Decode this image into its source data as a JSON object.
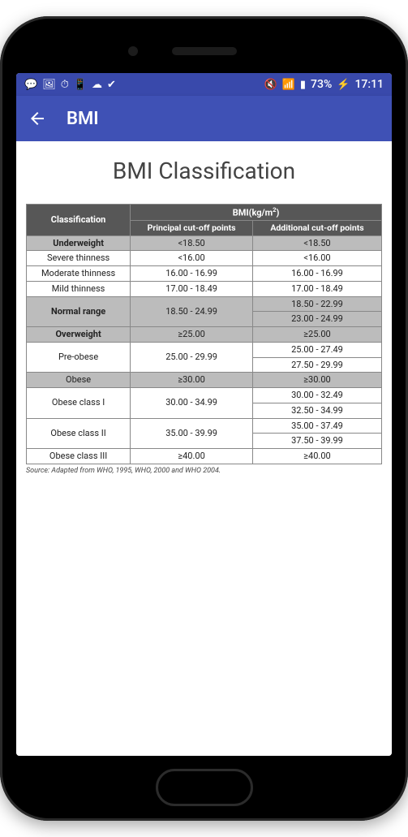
{
  "status_bar": {
    "left_icons": [
      "💬",
      "🖼",
      "⏱",
      "📱",
      "☁",
      "✔"
    ],
    "mute_icon": "🔇",
    "wifi_icon": "📶",
    "signal_icon": "▮",
    "battery_text": "73%",
    "battery_icon": "⚡",
    "time": "17:11"
  },
  "app_bar": {
    "title": "BMI"
  },
  "page": {
    "title": "BMI Classification",
    "source_note": "Source: Adapted from WHO, 1995, WHO, 2000 and WHO 2004."
  },
  "table": {
    "type": "table",
    "header": {
      "col1": "Classification",
      "col2": "BMI(kg/m",
      "col2_sup": "2",
      "col2_close": ")",
      "sub_principal": "Principal cut-off points",
      "sub_additional": "Additional cut-off points"
    },
    "colors": {
      "header_bg": "#575757",
      "header_fg": "#ffffff",
      "category_bg": "#bcbcbc",
      "border": "#888888",
      "row_bg": "#ffffff"
    },
    "rows": [
      {
        "kind": "category",
        "label": "Underweight",
        "principal": "<18.50",
        "additional": [
          "<18.50"
        ],
        "principal_rowspan": 1
      },
      {
        "kind": "sub",
        "indent": 1,
        "label": "Severe thinness",
        "principal": "<16.00",
        "additional": [
          "<16.00"
        ]
      },
      {
        "kind": "sub",
        "indent": 1,
        "label": "Moderate thinness",
        "principal": "16.00 - 16.99",
        "additional": [
          "16.00 - 16.99"
        ]
      },
      {
        "kind": "sub",
        "indent": 1,
        "label": "Mild thinness",
        "principal": "17.00 - 18.49",
        "additional": [
          "17.00 - 18.49"
        ]
      },
      {
        "kind": "category",
        "label": "Normal range",
        "principal": "18.50 - 24.99",
        "additional": [
          "18.50 - 22.99",
          "23.00 - 24.99"
        ],
        "principal_rowspan": 2,
        "shade_additional": true
      },
      {
        "kind": "category",
        "label": "Overweight",
        "principal": "≥25.00",
        "additional": [
          "≥25.00"
        ]
      },
      {
        "kind": "sub",
        "indent": 1,
        "label": "Pre-obese",
        "principal": "25.00 - 29.99",
        "additional": [
          "25.00 - 27.49",
          "27.50 - 29.99"
        ],
        "principal_rowspan": 2
      },
      {
        "kind": "sub-category",
        "indent": 1,
        "label": "Obese",
        "principal": "≥30.00",
        "additional": [
          "≥30.00"
        ],
        "shade_row": true
      },
      {
        "kind": "sub",
        "indent": 2,
        "label": "Obese class I",
        "principal": "30.00 - 34.99",
        "additional": [
          "30.00 - 32.49",
          "32.50 - 34.99"
        ],
        "principal_rowspan": 2
      },
      {
        "kind": "sub",
        "indent": 2,
        "label": "Obese class II",
        "principal": "35.00 - 39.99",
        "additional": [
          "35.00 - 37.49",
          "37.50 - 39.99"
        ],
        "principal_rowspan": 2
      },
      {
        "kind": "sub",
        "indent": 2,
        "label": "Obese class III",
        "principal": "≥40.00",
        "additional": [
          "≥40.00"
        ]
      }
    ]
  }
}
